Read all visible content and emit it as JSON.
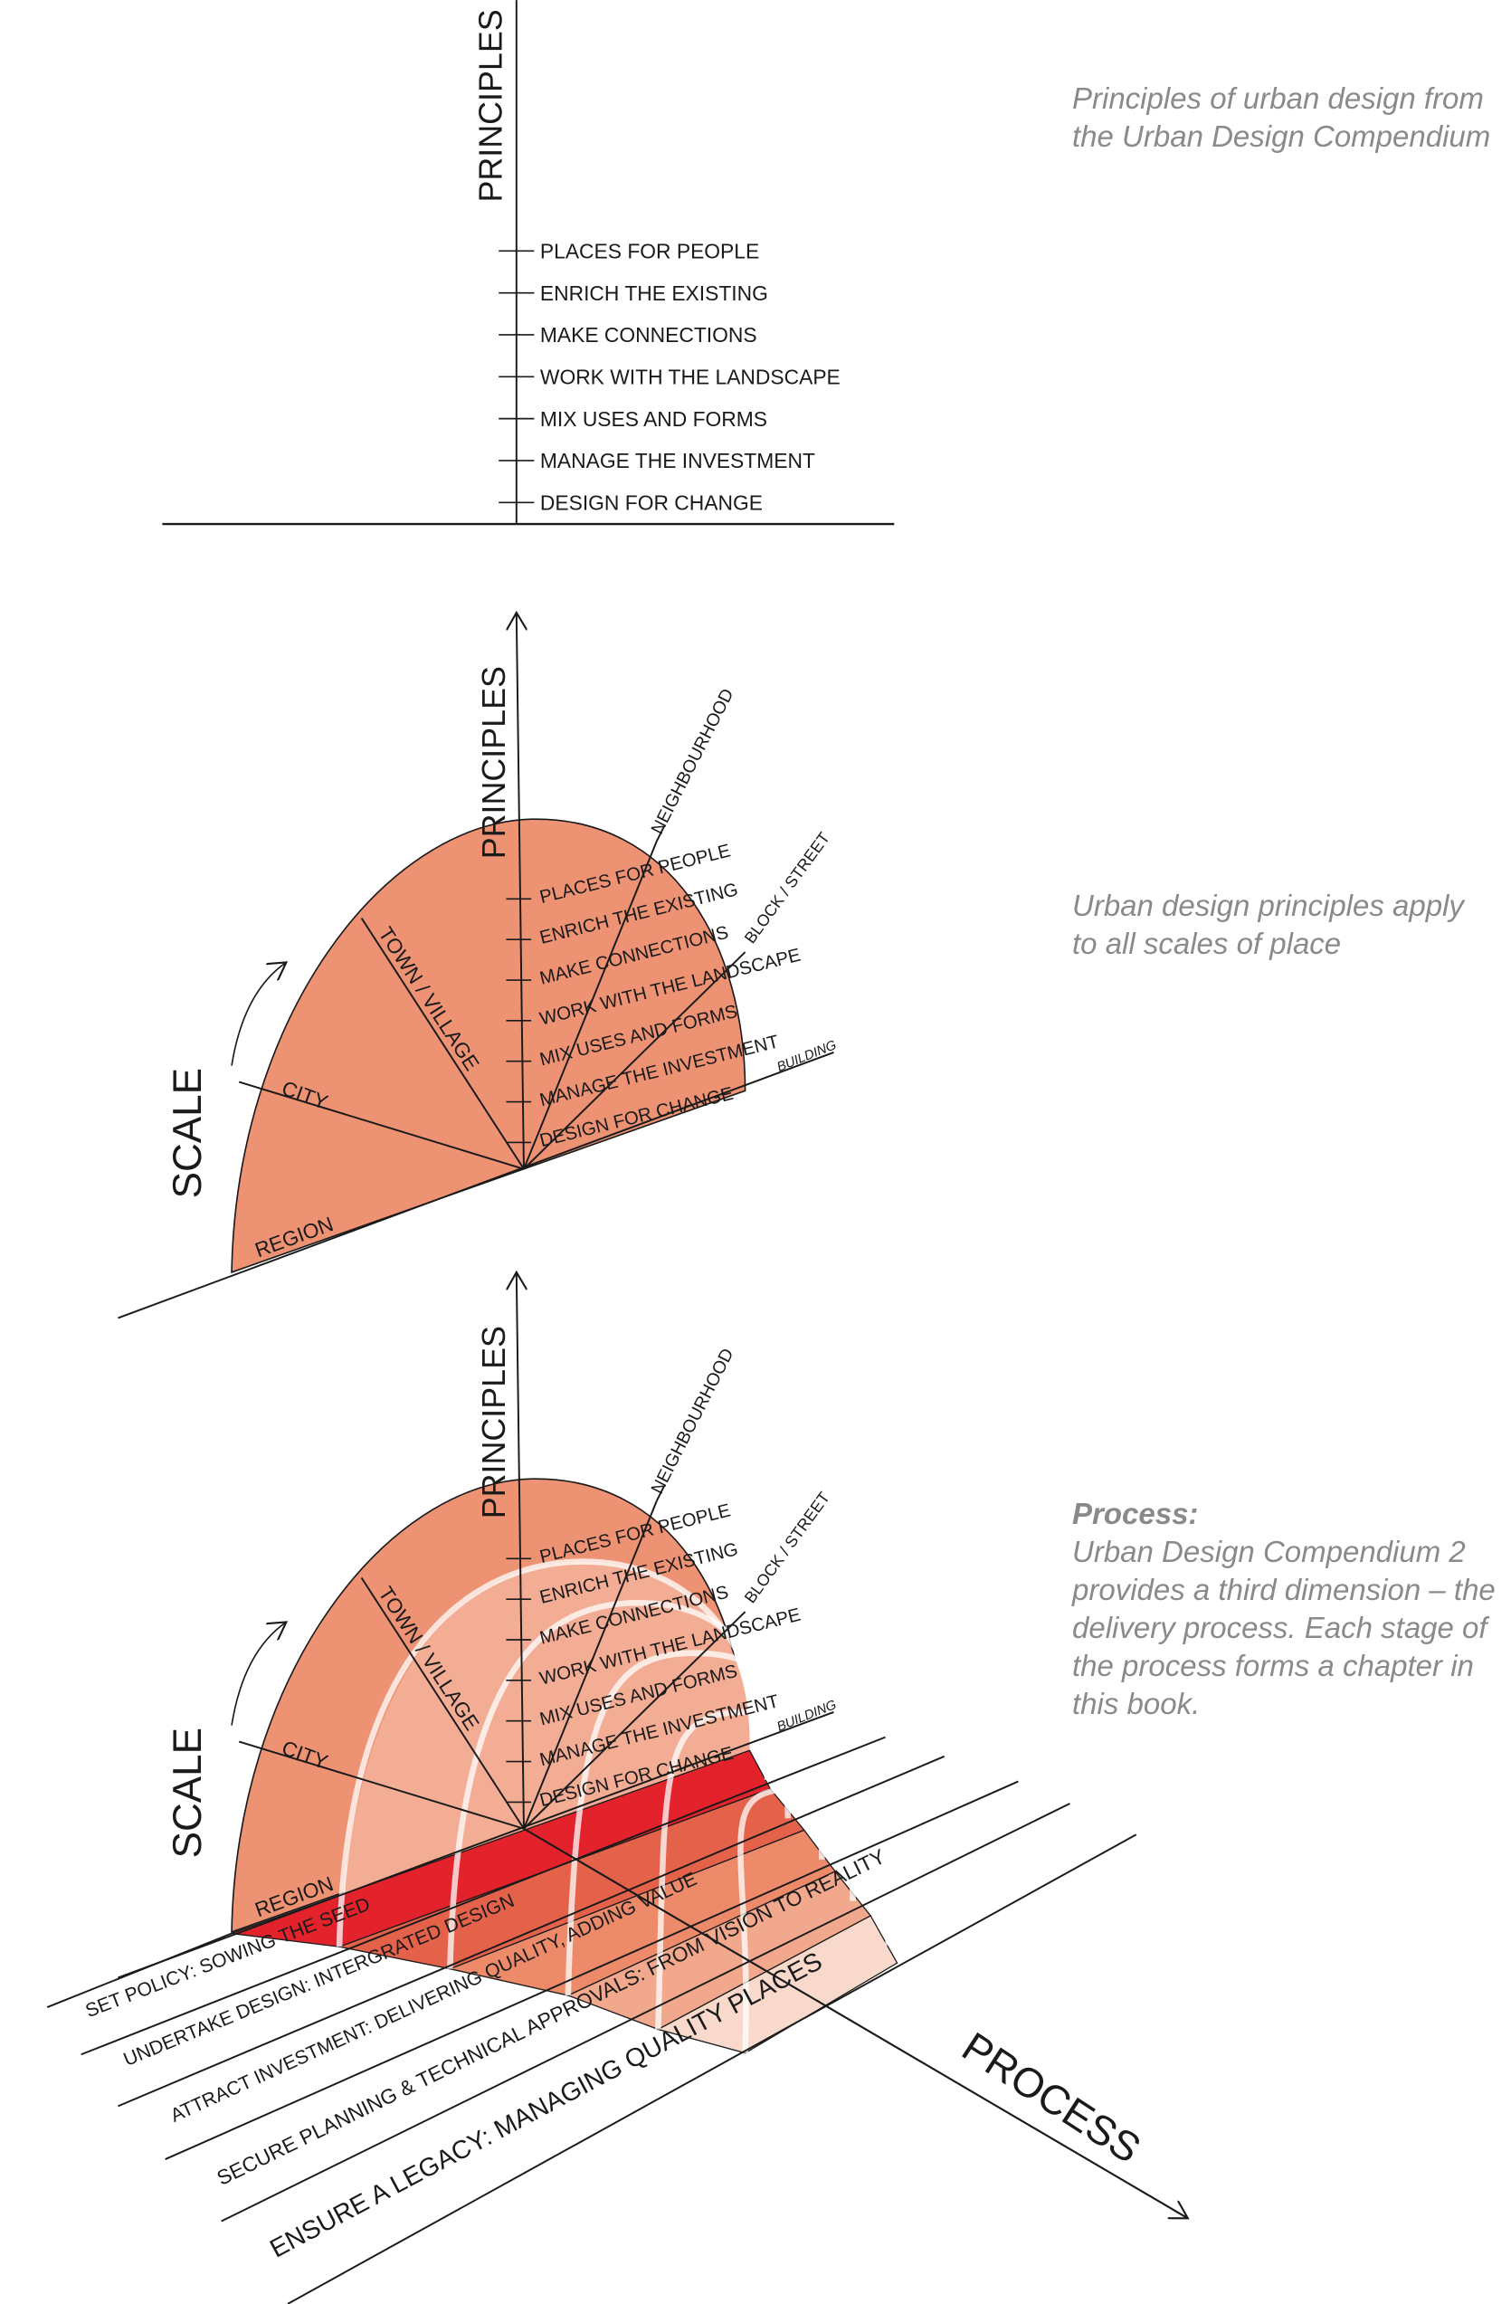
{
  "captions": {
    "principles": [
      "Principles of urban design from",
      "the Urban Design Compendium"
    ],
    "scales": [
      "Urban design principles apply",
      "to all scales of place"
    ],
    "process_title": "Process:",
    "process": [
      "Urban Design Compendium 2",
      "provides a third dimension – the",
      "delivery process. Each stage of",
      "the process forms a chapter in",
      "this book."
    ]
  },
  "axes": {
    "principles": "PRINCIPLES",
    "scale": "SCALE",
    "process": "PROCESS"
  },
  "principles": [
    "PLACES FOR PEOPLE",
    "ENRICH THE EXISTING",
    "MAKE CONNECTIONS",
    "WORK WITH THE LANDSCAPE",
    "MIX USES AND FORMS",
    "MANAGE THE INVESTMENT",
    "DESIGN FOR CHANGE"
  ],
  "scales": {
    "region": "REGION",
    "city": "CITY",
    "town": "TOWN / VILLAGE",
    "neighbourhood": "NEIGHBOURHOOD",
    "block": "BLOCK / STREET",
    "building": "BUILDING"
  },
  "process_stages": [
    "SET POLICY: SOWING THE SEED",
    "UNDERTAKE DESIGN: INTERGRATED DESIGN",
    "ATTRACT INVESTMENT: DELIVERING QUALITY, ADDING VALUE",
    "SECURE PLANNING & TECHNICAL APPROVALS: FROM VISION TO REALITY",
    "ENSURE A LEGACY: MANAGING QUALITY PLACES"
  ],
  "colors": {
    "fan": "#ee9274",
    "fan_light": "#f3ad94",
    "strips": [
      "#e3222b",
      "#e5624a",
      "#ec8a6a",
      "#f2a88d",
      "#f9d9cb"
    ],
    "caption": "#8a8a8a"
  }
}
